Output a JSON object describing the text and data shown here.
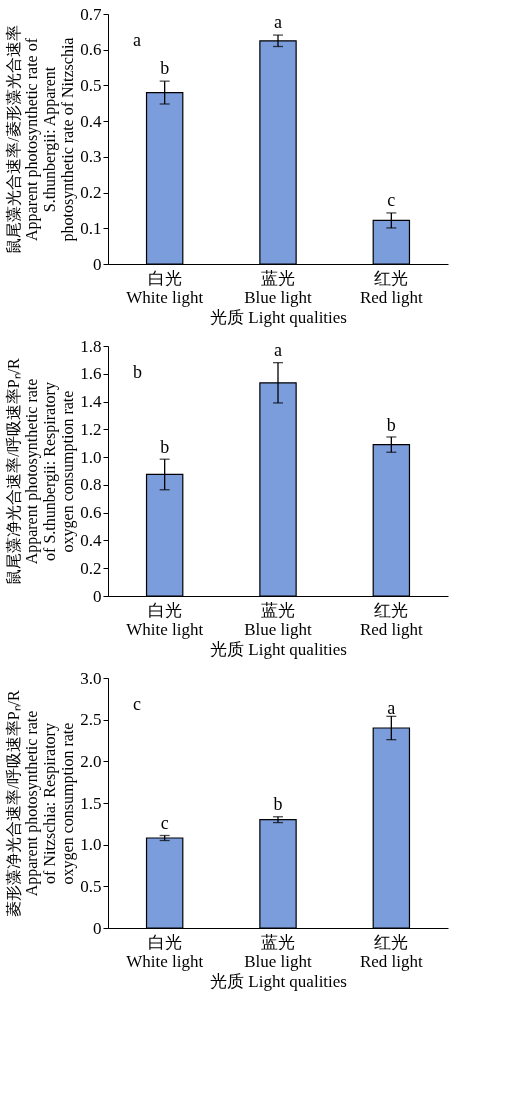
{
  "chart_data": [
    {
      "type": "bar",
      "title": "a",
      "categories": [
        "白光\nWhite light",
        "蓝光\nBlue light",
        "红光\nRed light"
      ],
      "values": [
        0.48,
        0.625,
        0.122
      ],
      "errors": [
        0.032,
        0.016,
        0.021
      ],
      "color": "#7b9ddc",
      "xlabel": "光质 Light qualities",
      "ylabel": "鼠尾藻光合速率/菱形藻光合速率\nApparent photosynthetic rate of\nS.thunbergii: Apparent\nphotosynthetic rate of Nitzschia",
      "ylim": [
        0,
        0.7
      ],
      "yticks": [
        0,
        0.1,
        0.2,
        0.3,
        0.4,
        0.5,
        0.6,
        0.7
      ],
      "grid": false,
      "legend": false,
      "annotations": [
        {
          "text": "b",
          "x": "白光\nWhite light",
          "y": 0.52
        },
        {
          "text": "a",
          "x": "蓝光\nBlue light",
          "y": 0.65
        },
        {
          "text": "c",
          "x": "红光\nRed light",
          "y": 0.152
        }
      ]
    },
    {
      "type": "bar",
      "title": "b",
      "categories": [
        "白光\nWhite light",
        "蓝光\nBlue light",
        "红光\nRed light"
      ],
      "values": [
        0.875,
        1.535,
        1.09
      ],
      "errors": [
        0.11,
        0.145,
        0.055
      ],
      "color": "#7b9ddc",
      "xlabel": "光质 Light qualities",
      "ylabel": "鼠尾藻净光合速率/呼吸速率Pₙ/R\nApparent photosynthetic rate\nof S.thunbergii: Respiratory\noxygen consumption rate",
      "ylim": [
        0,
        1.8
      ],
      "yticks": [
        0,
        0.2,
        0.4,
        0.6,
        0.8,
        {
          "value": 1,
          "label": "1.0"
        },
        1.2,
        1.4,
        1.6,
        1.8
      ],
      "grid": false,
      "legend": false,
      "annotations": [
        {
          "text": "b",
          "x": "白光\nWhite light",
          "y": 1.0
        },
        {
          "text": "a",
          "x": "蓝光\nBlue light",
          "y": 1.7
        },
        {
          "text": "b",
          "x": "红光\nRed light",
          "y": 1.16
        }
      ]
    },
    {
      "type": "bar",
      "title": "c",
      "categories": [
        "白光\nWhite light",
        "蓝光\nBlue light",
        "红光\nRed light"
      ],
      "values": [
        1.08,
        1.3,
        2.4
      ],
      "errors": [
        0.03,
        0.035,
        0.14
      ],
      "color": "#7b9ddc",
      "xlabel": "光质 Light qualities",
      "ylabel": "菱形藻净光合速率/呼吸速率Pₙ/R\nApparent photosynthetic rate\nof Nitzschia: Respiratory\noxygen consumption rate",
      "ylim": [
        0,
        3.0
      ],
      "yticks": [
        0,
        0.5,
        {
          "value": 1,
          "label": "1.0"
        },
        1.5,
        {
          "value": 2,
          "label": "2.0"
        },
        2.5,
        {
          "value": 3,
          "label": "3.0"
        }
      ],
      "grid": false,
      "legend": false,
      "annotations": [
        {
          "text": "c",
          "x": "白光\nWhite light",
          "y": 1.14
        },
        {
          "text": "b",
          "x": "蓝光\nBlue light",
          "y": 1.37
        },
        {
          "text": "a",
          "x": "红光\nRed light",
          "y": 2.52
        }
      ]
    }
  ]
}
